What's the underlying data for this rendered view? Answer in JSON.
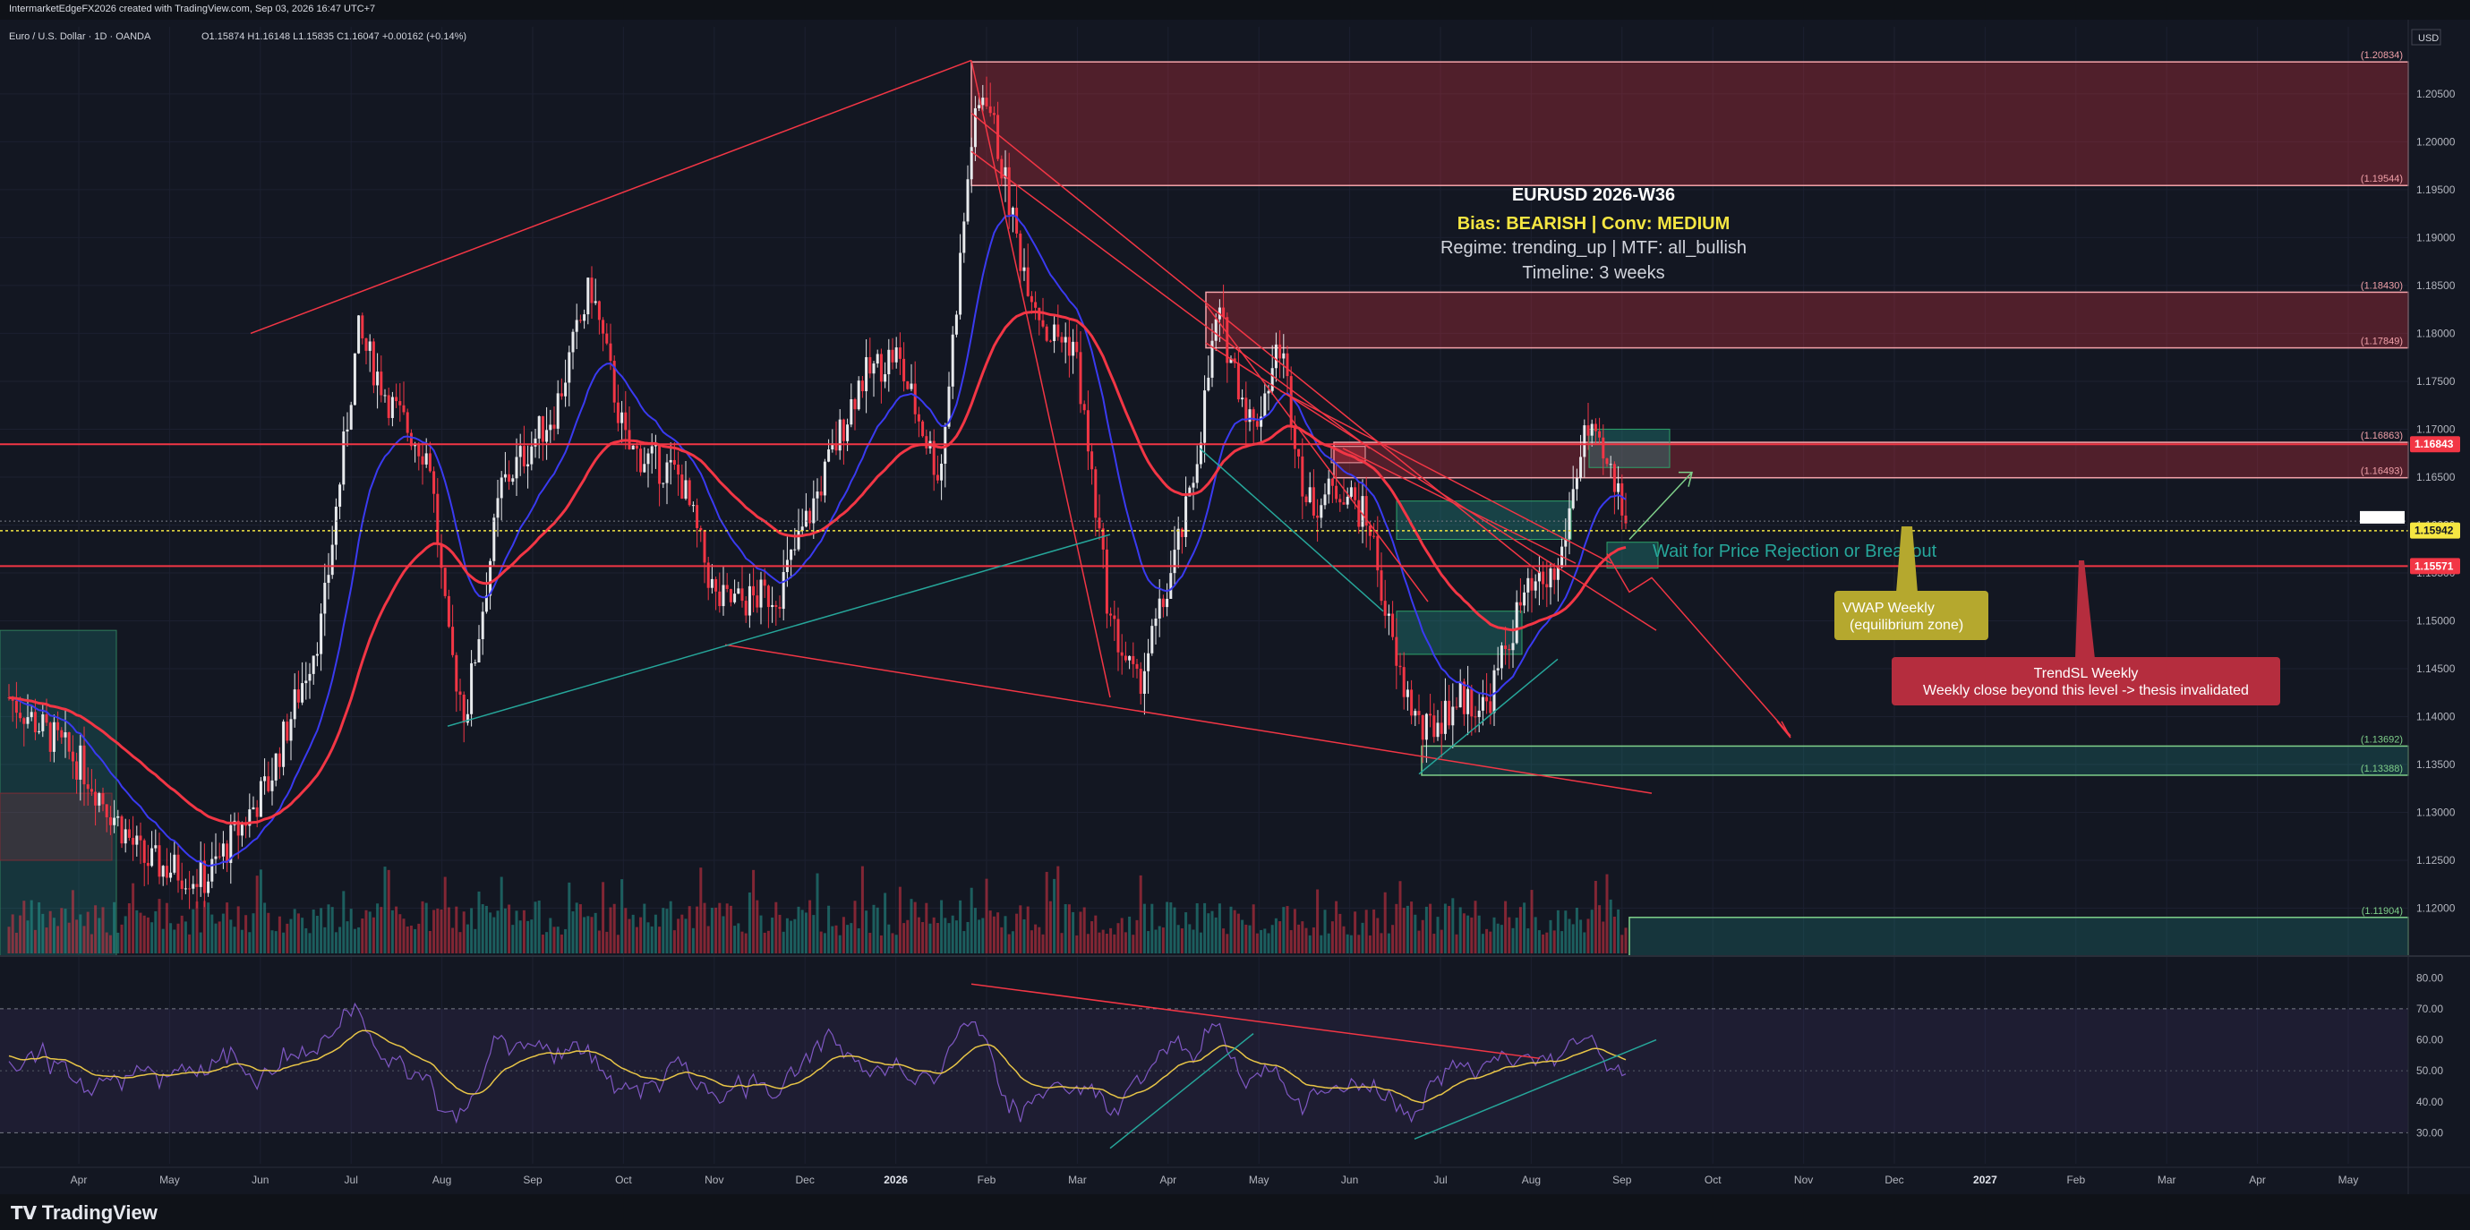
{
  "header": {
    "caption": "IntermarketEdgeFX2026 created with TradingView.com, Sep 03, 2026 16:47 UTC+7"
  },
  "chart_data": {
    "type": "candlestick",
    "symbol_line": "Euro / U.S. Dollar · 1D · OANDA",
    "ohlc_line": "O1.15874 H1.16148 L1.15835 C1.16047 +0.00162 (+0.14%)",
    "currency": "USD",
    "price_axis": {
      "min": 1.115,
      "max": 1.212,
      "ticks": [
        "1.20500",
        "1.20000",
        "1.19500",
        "1.19000",
        "1.18500",
        "1.18000",
        "1.17500",
        "1.17000",
        "1.16500",
        "1.16000",
        "1.15500",
        "1.15000",
        "1.14500",
        "1.14000",
        "1.13500",
        "1.13000",
        "1.12500",
        "1.12000"
      ]
    },
    "time_axis": [
      "Apr",
      "May",
      "Jun",
      "Jul",
      "Aug",
      "Sep",
      "Oct",
      "Nov",
      "Dec",
      "2026",
      "Feb",
      "Mar",
      "Apr",
      "May",
      "Jun",
      "Jul",
      "Aug",
      "Sep",
      "Oct",
      "Nov",
      "Dec",
      "2027",
      "Feb",
      "Mar",
      "Apr",
      "May"
    ],
    "level_labels": [
      {
        "text": "(1.20834)",
        "value": 1.20834,
        "color": "#f0a0a8"
      },
      {
        "text": "(1.19544)",
        "value": 1.19544,
        "color": "#f0a0a8"
      },
      {
        "text": "(1.18430)",
        "value": 1.1843,
        "color": "#f0a0a8"
      },
      {
        "text": "(1.17849)",
        "value": 1.17849,
        "color": "#f0a0a8"
      },
      {
        "text": "(1.16863)",
        "value": 1.16863,
        "color": "#f0a0a8"
      },
      {
        "text": "(1.16493)",
        "value": 1.16493,
        "color": "#f0a0a8"
      },
      {
        "text": "(1.13692)",
        "value": 1.13692,
        "color": "#7fd08a"
      },
      {
        "text": "(1.13388)",
        "value": 1.13388,
        "color": "#7fd08a"
      },
      {
        "text": "(1.11904)",
        "value": 1.11904,
        "color": "#7fd08a"
      }
    ],
    "price_tags": [
      {
        "text": "1.16843",
        "value": 1.16843,
        "bg": "#f23645",
        "fg": "#ffffff"
      },
      {
        "text": "1.15942",
        "value": 1.15942,
        "bg": "#f5e642",
        "fg": "#131722"
      },
      {
        "text": "1.15571",
        "value": 1.15571,
        "bg": "#f23645",
        "fg": "#ffffff"
      }
    ],
    "horizontal_lines": [
      1.16843,
      1.15571
    ],
    "annotation_title": "EURUSD 2026-W36",
    "annotation_bias": "Bias: BEARISH | Conv: MEDIUM",
    "annotation_regime": "Regime: trending_up | MTF: all_bullish",
    "annotation_timeline": "Timeline: 3 weeks",
    "wait_text": "Wait for Price Rejection or Breakout",
    "vwap_text_1": "VWAP Weekly",
    "vwap_text_2": "(equilibrium zone)",
    "trendsl_text_1": "TrendSL Weekly",
    "trendsl_text_2": "Weekly close beyond this level -> thesis invalidated",
    "rsi_axis": {
      "min": 20,
      "max": 85,
      "ticks": [
        "80.00",
        "70.00",
        "60.00",
        "50.00",
        "40.00",
        "30.00"
      ],
      "bands": [
        70,
        30
      ]
    },
    "colors": {
      "up": "#e8eaed",
      "down": "#f23645",
      "ema_fast": "#3a3af0",
      "ema_slow": "#f23645",
      "rsi": "#7e57c2",
      "rsi_ma": "#e8c547",
      "zone_red": "#f23645",
      "zone_green": "#26a69a"
    }
  },
  "footer": {
    "brand": "TradingView"
  }
}
